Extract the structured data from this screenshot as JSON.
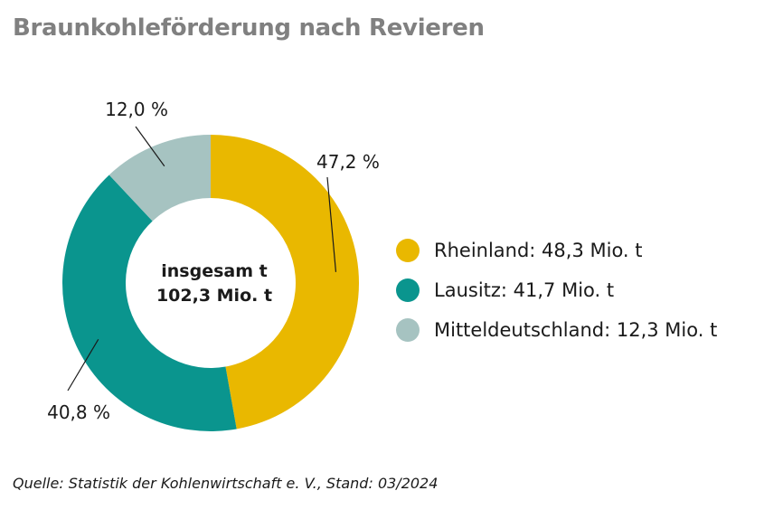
{
  "title": "Braunkohleförderung nach Revieren",
  "source": "Quelle: Statistik der Kohlenwirtschaft e. V., Stand: 03/2024",
  "chart_data": {
    "type": "pie",
    "style": "donut",
    "center_label": [
      "insgesam t",
      "102,3 Mio. t"
    ],
    "slices": [
      {
        "name": "Rheinland",
        "percent": 47.2,
        "percent_label": "47,2 %",
        "value": 48.3,
        "legend_label": "Rheinland: 48,3 Mio. t",
        "color": "#E9B800"
      },
      {
        "name": "Lausitz",
        "percent": 40.8,
        "percent_label": "40,8 %",
        "value": 41.7,
        "legend_label": "Lausitz: 41,7 Mio. t",
        "color": "#0A958E"
      },
      {
        "name": "Mitteldeutschland",
        "percent": 12.0,
        "percent_label": "12,0 %",
        "value": 12.3,
        "legend_label": "Mitteldeutschland: 12,3 Mio. t",
        "color": "#A6C3C1"
      }
    ],
    "unit": "Mio. t"
  }
}
